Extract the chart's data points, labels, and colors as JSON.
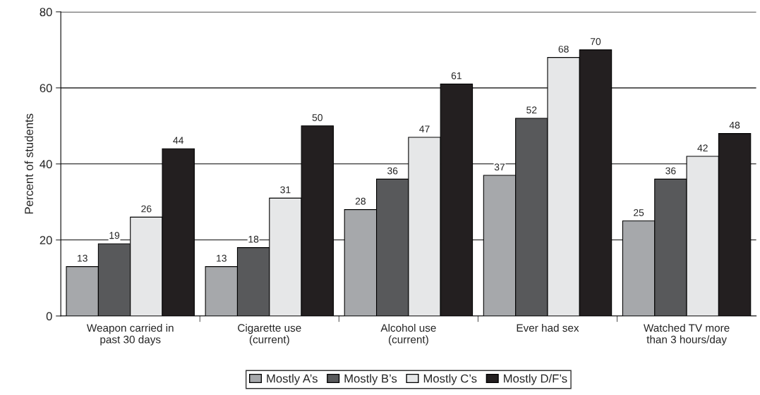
{
  "chart_data": {
    "type": "bar",
    "categories": [
      "Weapon carried in\npast 30 days",
      "Cigarette use\n(current)",
      "Alcohol use\n(current)",
      "Ever had sex",
      "Watched TV more\nthan 3 hours/day"
    ],
    "series": [
      {
        "name": "Mostly A’s",
        "color": "#a6a8ab",
        "values": [
          13,
          13,
          28,
          37,
          25
        ]
      },
      {
        "name": "Mostly B’s",
        "color": "#58595b",
        "values": [
          19,
          18,
          36,
          52,
          36
        ]
      },
      {
        "name": "Mostly C’s",
        "color": "#e6e7e8",
        "values": [
          26,
          31,
          47,
          68,
          42
        ]
      },
      {
        "name": "Mostly D/F’s",
        "color": "#231f20",
        "values": [
          44,
          50,
          61,
          70,
          48
        ]
      }
    ],
    "ylabel": "Percent of students",
    "ylim": [
      0,
      80
    ],
    "yticks": [
      0,
      20,
      40,
      60,
      80
    ],
    "grid": "y",
    "legend": "bottom",
    "data_labels": true
  }
}
